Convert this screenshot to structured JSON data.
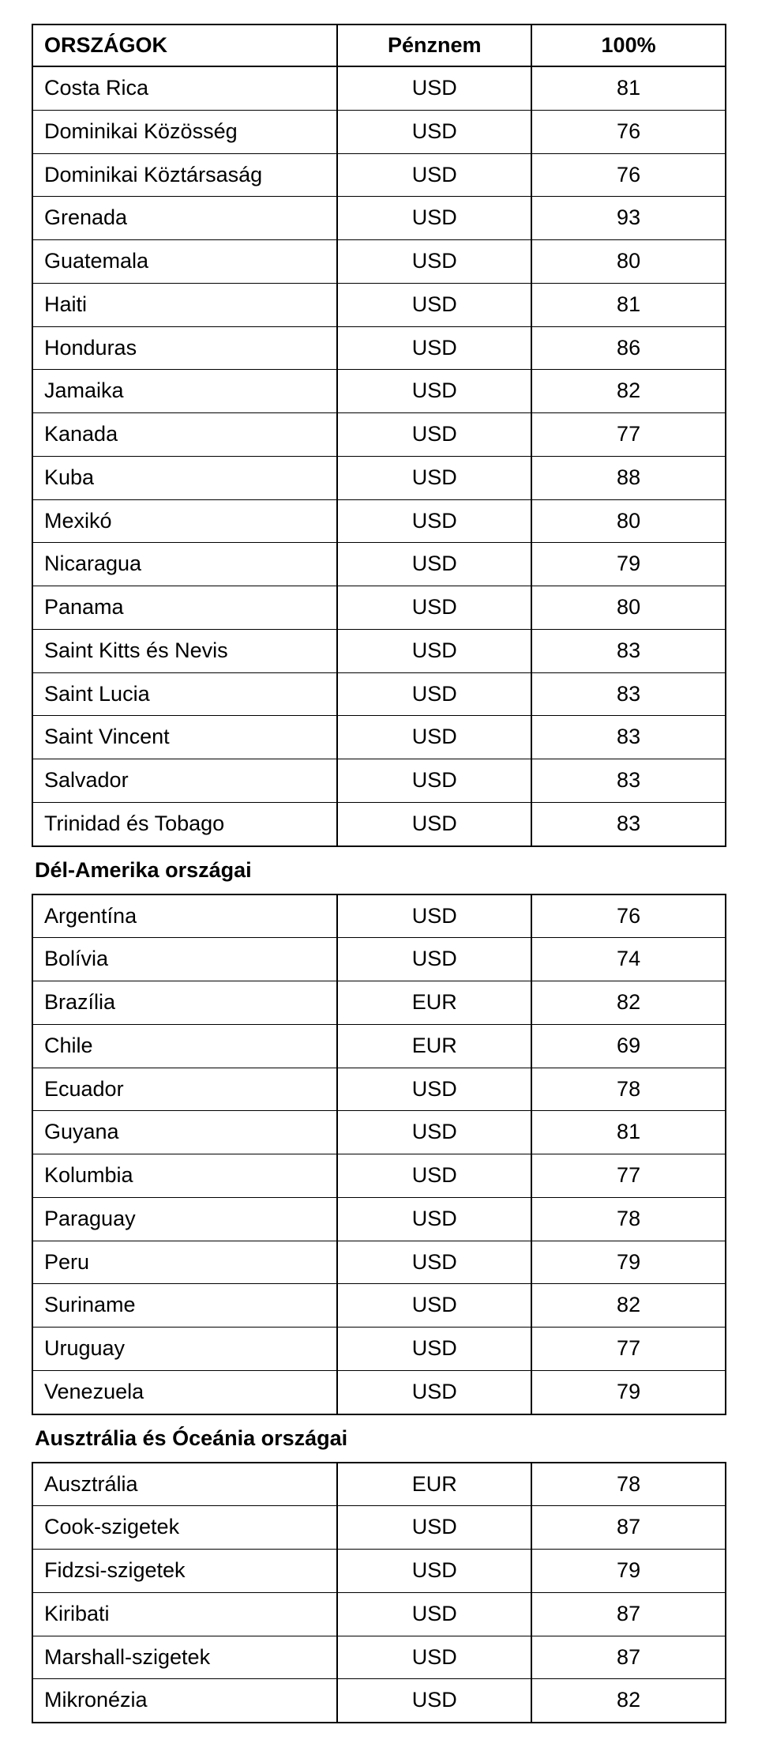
{
  "header": {
    "country": "ORSZÁGOK",
    "currency": "Pénznem",
    "value": "100%"
  },
  "block1_rows": [
    {
      "country": "Costa Rica",
      "currency": "USD",
      "value": "81"
    },
    {
      "country": "Dominikai Közösség",
      "currency": "USD",
      "value": "76"
    },
    {
      "country": "Dominikai Köztársaság",
      "currency": "USD",
      "value": "76"
    },
    {
      "country": "Grenada",
      "currency": "USD",
      "value": "93"
    },
    {
      "country": "Guatemala",
      "currency": "USD",
      "value": "80"
    },
    {
      "country": "Haiti",
      "currency": "USD",
      "value": "81"
    },
    {
      "country": "Honduras",
      "currency": "USD",
      "value": "86"
    },
    {
      "country": "Jamaika",
      "currency": "USD",
      "value": "82"
    },
    {
      "country": "Kanada",
      "currency": "USD",
      "value": "77"
    },
    {
      "country": "Kuba",
      "currency": "USD",
      "value": "88"
    },
    {
      "country": "Mexikó",
      "currency": "USD",
      "value": "80"
    },
    {
      "country": "Nicaragua",
      "currency": "USD",
      "value": "79"
    },
    {
      "country": "Panama",
      "currency": "USD",
      "value": "80"
    },
    {
      "country": "Saint Kitts és Nevis",
      "currency": "USD",
      "value": "83"
    },
    {
      "country": "Saint Lucia",
      "currency": "USD",
      "value": "83"
    },
    {
      "country": "Saint Vincent",
      "currency": "USD",
      "value": "83"
    },
    {
      "country": "Salvador",
      "currency": "USD",
      "value": "83"
    },
    {
      "country": "Trinidad és Tobago",
      "currency": "USD",
      "value": "83"
    }
  ],
  "caption_block2": "Dél-Amerika országai",
  "block2_rows": [
    {
      "country": "Argentína",
      "currency": "USD",
      "value": "76"
    },
    {
      "country": "Bolívia",
      "currency": "USD",
      "value": "74"
    },
    {
      "country": "Brazília",
      "currency": "EUR",
      "value": "82"
    },
    {
      "country": "Chile",
      "currency": "EUR",
      "value": "69"
    },
    {
      "country": "Ecuador",
      "currency": "USD",
      "value": "78"
    },
    {
      "country": "Guyana",
      "currency": "USD",
      "value": "81"
    },
    {
      "country": "Kolumbia",
      "currency": "USD",
      "value": "77"
    },
    {
      "country": "Paraguay",
      "currency": "USD",
      "value": "78"
    },
    {
      "country": "Peru",
      "currency": "USD",
      "value": "79"
    },
    {
      "country": "Suriname",
      "currency": "USD",
      "value": "82"
    },
    {
      "country": "Uruguay",
      "currency": "USD",
      "value": "77"
    },
    {
      "country": "Venezuela",
      "currency": "USD",
      "value": "79"
    }
  ],
  "caption_block3": "Ausztrália és Óceánia országai",
  "block3_rows": [
    {
      "country": "Ausztrália",
      "currency": "EUR",
      "value": "78"
    },
    {
      "country": "Cook-szigetek",
      "currency": "USD",
      "value": "87"
    },
    {
      "country": "Fidzsi-szigetek",
      "currency": "USD",
      "value": "79"
    },
    {
      "country": "Kiribati",
      "currency": "USD",
      "value": "87"
    },
    {
      "country": "Marshall-szigetek",
      "currency": "USD",
      "value": "87"
    },
    {
      "country": "Mikronézia",
      "currency": "USD",
      "value": "82"
    }
  ]
}
